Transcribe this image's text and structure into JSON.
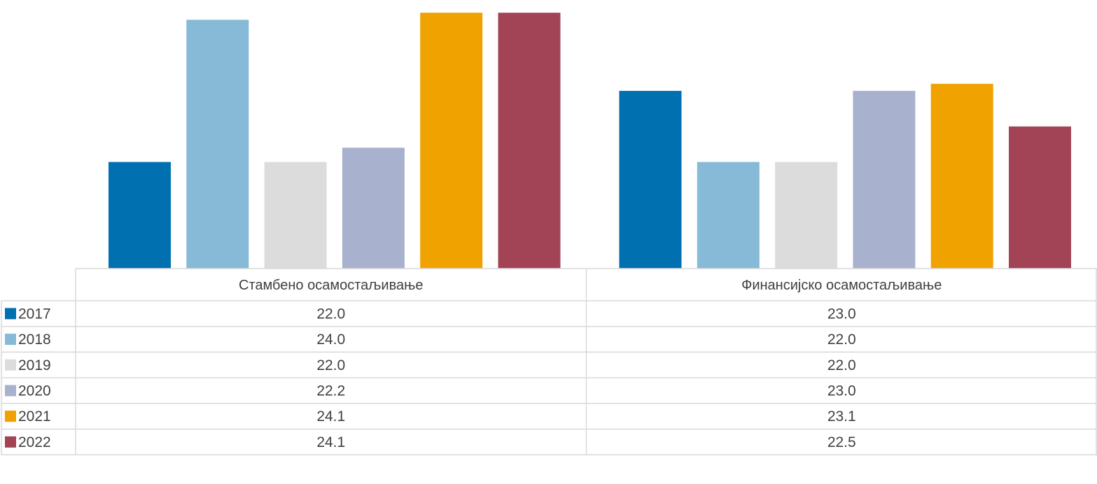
{
  "chart_data": {
    "type": "bar",
    "title": "",
    "xlabel": "",
    "ylabel": "",
    "ylim": [
      20.5,
      24.2
    ],
    "categories": [
      "Стамбено осамостаљивање",
      "Финансијско осамостаљивање"
    ],
    "series": [
      {
        "name": "2017",
        "color": "#0070B0",
        "values": [
          22.0,
          23.0
        ],
        "labels": [
          "22.0",
          "23.0"
        ]
      },
      {
        "name": "2018",
        "color": "#86BAD7",
        "values": [
          24.0,
          22.0
        ],
        "labels": [
          "24.0",
          "22.0"
        ]
      },
      {
        "name": "2019",
        "color": "#DCDCDC",
        "values": [
          22.0,
          22.0
        ],
        "labels": [
          "22.0",
          "22.0"
        ]
      },
      {
        "name": "2020",
        "color": "#A8B2CE",
        "values": [
          22.2,
          23.0
        ],
        "labels": [
          "22.2",
          "23.0"
        ]
      },
      {
        "name": "2021",
        "color": "#EFA200",
        "values": [
          24.1,
          23.1
        ],
        "labels": [
          "24.1",
          "23.1"
        ]
      },
      {
        "name": "2022",
        "color": "#A24455",
        "values": [
          24.1,
          22.5
        ],
        "labels": [
          "24.1",
          "22.5"
        ]
      }
    ],
    "data_table": true,
    "legend": "in data table"
  }
}
